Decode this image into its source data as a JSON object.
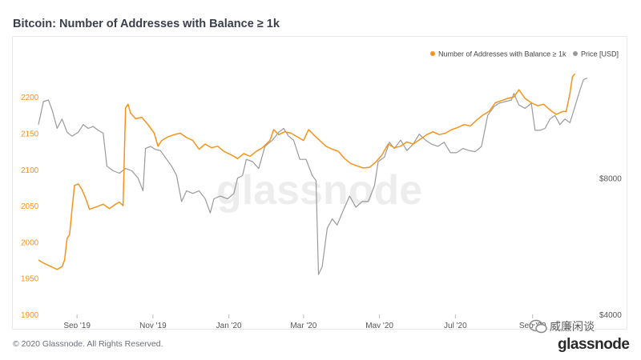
{
  "title": "Bitcoin: Number of Addresses with Balance ≥ 1k",
  "footer": "© 2020 Glassnode. All Rights Reserved.",
  "watermark": "glassnode",
  "brand": "glassnode",
  "wechat_label": "威廉闲谈",
  "colors": {
    "addresses": "#f7931a",
    "price": "#9a9a9a",
    "left_axis": "#f7931a",
    "right_axis": "#555555"
  },
  "chart_data": {
    "type": "line",
    "title": "Bitcoin: Number of Addresses with Balance ≥ 1k",
    "legend": {
      "position": "top-right",
      "entries": [
        "Number of Addresses with Balance ≥ 1k",
        "Price [USD]"
      ]
    },
    "x_ticks": [
      "Sep '19",
      "Nov '19",
      "Jan '20",
      "Mar '20",
      "May '20",
      "Jul '20",
      "Sep '20"
    ],
    "x_tick_dates": [
      "2019-09-01",
      "2019-11-01",
      "2020-01-01",
      "2020-03-01",
      "2020-05-01",
      "2020-07-01",
      "2020-09-01"
    ],
    "xlim": [
      "2019-08-01",
      "2020-10-15"
    ],
    "y_left": {
      "ticks": [
        1900,
        1950,
        2000,
        2050,
        2100,
        2150,
        2200
      ],
      "ylim": [
        1900,
        2240
      ]
    },
    "y_right": {
      "scale": "log",
      "ticks": [
        4000,
        8000
      ],
      "tick_labels": [
        "$4000",
        "$8000"
      ],
      "ylim": [
        4000,
        14000
      ]
    },
    "grid": false,
    "series": [
      {
        "name": "Number of Addresses with Balance ≥ 1k",
        "axis": "left",
        "points": [
          [
            "2019-08-01",
            1975
          ],
          [
            "2019-08-06",
            1970
          ],
          [
            "2019-08-11",
            1966
          ],
          [
            "2019-08-16",
            1962
          ],
          [
            "2019-08-20",
            1966
          ],
          [
            "2019-08-22",
            1975
          ],
          [
            "2019-08-24",
            2005
          ],
          [
            "2019-08-26",
            2010
          ],
          [
            "2019-08-28",
            2045
          ],
          [
            "2019-08-30",
            2078
          ],
          [
            "2019-09-02",
            2080
          ],
          [
            "2019-09-05",
            2072
          ],
          [
            "2019-09-08",
            2060
          ],
          [
            "2019-09-11",
            2045
          ],
          [
            "2019-09-16",
            2048
          ],
          [
            "2019-09-22",
            2052
          ],
          [
            "2019-09-27",
            2046
          ],
          [
            "2019-10-02",
            2052
          ],
          [
            "2019-10-05",
            2055
          ],
          [
            "2019-10-08",
            2050
          ],
          [
            "2019-10-10",
            2185
          ],
          [
            "2019-10-12",
            2190
          ],
          [
            "2019-10-14",
            2178
          ],
          [
            "2019-10-18",
            2170
          ],
          [
            "2019-10-23",
            2172
          ],
          [
            "2019-10-28",
            2162
          ],
          [
            "2019-11-02",
            2150
          ],
          [
            "2019-11-05",
            2132
          ],
          [
            "2019-11-08",
            2140
          ],
          [
            "2019-11-13",
            2145
          ],
          [
            "2019-11-18",
            2148
          ],
          [
            "2019-11-23",
            2150
          ],
          [
            "2019-11-28",
            2144
          ],
          [
            "2019-12-03",
            2140
          ],
          [
            "2019-12-08",
            2128
          ],
          [
            "2019-12-13",
            2135
          ],
          [
            "2019-12-18",
            2130
          ],
          [
            "2019-12-23",
            2132
          ],
          [
            "2019-12-28",
            2125
          ],
          [
            "2020-01-03",
            2120
          ],
          [
            "2020-01-08",
            2115
          ],
          [
            "2020-01-13",
            2122
          ],
          [
            "2020-01-18",
            2118
          ],
          [
            "2020-01-23",
            2125
          ],
          [
            "2020-01-28",
            2130
          ],
          [
            "2020-02-03",
            2140
          ],
          [
            "2020-02-06",
            2155
          ],
          [
            "2020-02-10",
            2148
          ],
          [
            "2020-02-15",
            2152
          ],
          [
            "2020-02-20",
            2150
          ],
          [
            "2020-02-25",
            2145
          ],
          [
            "2020-03-01",
            2140
          ],
          [
            "2020-03-05",
            2155
          ],
          [
            "2020-03-09",
            2148
          ],
          [
            "2020-03-14",
            2140
          ],
          [
            "2020-03-19",
            2132
          ],
          [
            "2020-03-24",
            2128
          ],
          [
            "2020-03-29",
            2125
          ],
          [
            "2020-04-03",
            2115
          ],
          [
            "2020-04-08",
            2108
          ],
          [
            "2020-04-13",
            2105
          ],
          [
            "2020-04-18",
            2102
          ],
          [
            "2020-04-23",
            2103
          ],
          [
            "2020-04-28",
            2110
          ],
          [
            "2020-05-03",
            2120
          ],
          [
            "2020-05-08",
            2135
          ],
          [
            "2020-05-13",
            2130
          ],
          [
            "2020-05-18",
            2132
          ],
          [
            "2020-05-23",
            2138
          ],
          [
            "2020-05-28",
            2135
          ],
          [
            "2020-06-03",
            2142
          ],
          [
            "2020-06-08",
            2148
          ],
          [
            "2020-06-13",
            2152
          ],
          [
            "2020-06-18",
            2148
          ],
          [
            "2020-06-23",
            2150
          ],
          [
            "2020-06-28",
            2155
          ],
          [
            "2020-07-03",
            2158
          ],
          [
            "2020-07-08",
            2162
          ],
          [
            "2020-07-13",
            2160
          ],
          [
            "2020-07-18",
            2168
          ],
          [
            "2020-07-23",
            2175
          ],
          [
            "2020-07-28",
            2180
          ],
          [
            "2020-08-02",
            2192
          ],
          [
            "2020-08-07",
            2195
          ],
          [
            "2020-08-12",
            2198
          ],
          [
            "2020-08-17",
            2200
          ],
          [
            "2020-08-21",
            2210
          ],
          [
            "2020-08-26",
            2198
          ],
          [
            "2020-08-31",
            2192
          ],
          [
            "2020-09-05",
            2188
          ],
          [
            "2020-09-10",
            2190
          ],
          [
            "2020-09-15",
            2182
          ],
          [
            "2020-09-20",
            2176
          ],
          [
            "2020-09-25",
            2180
          ],
          [
            "2020-09-28",
            2180
          ],
          [
            "2020-10-01",
            2205
          ],
          [
            "2020-10-03",
            2228
          ],
          [
            "2020-10-05",
            2232
          ]
        ]
      },
      {
        "name": "Price [USD]",
        "axis": "right",
        "points": [
          [
            "2019-08-01",
            10500
          ],
          [
            "2019-08-05",
            11800
          ],
          [
            "2019-08-09",
            11900
          ],
          [
            "2019-08-12",
            11300
          ],
          [
            "2019-08-16",
            10300
          ],
          [
            "2019-08-20",
            10800
          ],
          [
            "2019-08-24",
            10100
          ],
          [
            "2019-08-28",
            9900
          ],
          [
            "2019-09-02",
            10100
          ],
          [
            "2019-09-06",
            10500
          ],
          [
            "2019-09-10",
            10300
          ],
          [
            "2019-09-14",
            10400
          ],
          [
            "2019-09-18",
            10200
          ],
          [
            "2019-09-22",
            10050
          ],
          [
            "2019-09-25",
            8500
          ],
          [
            "2019-09-30",
            8300
          ],
          [
            "2019-10-05",
            8200
          ],
          [
            "2019-10-10",
            8400
          ],
          [
            "2019-10-15",
            8300
          ],
          [
            "2019-10-20",
            8000
          ],
          [
            "2019-10-24",
            7500
          ],
          [
            "2019-10-26",
            9300
          ],
          [
            "2019-10-30",
            9400
          ],
          [
            "2019-11-03",
            9250
          ],
          [
            "2019-11-07",
            9200
          ],
          [
            "2019-11-12",
            8800
          ],
          [
            "2019-11-16",
            8500
          ],
          [
            "2019-11-20",
            8100
          ],
          [
            "2019-11-24",
            7100
          ],
          [
            "2019-11-28",
            7500
          ],
          [
            "2019-12-03",
            7400
          ],
          [
            "2019-12-08",
            7500
          ],
          [
            "2019-12-13",
            7200
          ],
          [
            "2019-12-17",
            6700
          ],
          [
            "2019-12-20",
            7200
          ],
          [
            "2019-12-25",
            7300
          ],
          [
            "2019-12-31",
            7200
          ],
          [
            "2020-01-05",
            7400
          ],
          [
            "2020-01-08",
            8000
          ],
          [
            "2020-01-12",
            8100
          ],
          [
            "2020-01-15",
            8800
          ],
          [
            "2020-01-20",
            8700
          ],
          [
            "2020-01-25",
            8400
          ],
          [
            "2020-01-30",
            9400
          ],
          [
            "2020-02-05",
            9700
          ],
          [
            "2020-02-10",
            10100
          ],
          [
            "2020-02-14",
            10300
          ],
          [
            "2020-02-18",
            9900
          ],
          [
            "2020-02-22",
            9700
          ],
          [
            "2020-02-27",
            8800
          ],
          [
            "2020-03-03",
            8800
          ],
          [
            "2020-03-08",
            8100
          ],
          [
            "2020-03-11",
            7900
          ],
          [
            "2020-03-13",
            4900
          ],
          [
            "2020-03-16",
            5100
          ],
          [
            "2020-03-20",
            6200
          ],
          [
            "2020-03-24",
            6500
          ],
          [
            "2020-03-28",
            6300
          ],
          [
            "2020-04-02",
            6800
          ],
          [
            "2020-04-07",
            7300
          ],
          [
            "2020-04-12",
            6900
          ],
          [
            "2020-04-17",
            7100
          ],
          [
            "2020-04-22",
            7100
          ],
          [
            "2020-04-27",
            7700
          ],
          [
            "2020-04-30",
            8700
          ],
          [
            "2020-05-05",
            8900
          ],
          [
            "2020-05-09",
            9600
          ],
          [
            "2020-05-13",
            9300
          ],
          [
            "2020-05-18",
            9700
          ],
          [
            "2020-05-23",
            9200
          ],
          [
            "2020-05-28",
            9500
          ],
          [
            "2020-06-02",
            10000
          ],
          [
            "2020-06-07",
            9700
          ],
          [
            "2020-06-12",
            9500
          ],
          [
            "2020-06-17",
            9400
          ],
          [
            "2020-06-22",
            9600
          ],
          [
            "2020-06-27",
            9100
          ],
          [
            "2020-07-02",
            9100
          ],
          [
            "2020-07-07",
            9300
          ],
          [
            "2020-07-12",
            9200
          ],
          [
            "2020-07-17",
            9150
          ],
          [
            "2020-07-22",
            9400
          ],
          [
            "2020-07-27",
            11000
          ],
          [
            "2020-08-01",
            11500
          ],
          [
            "2020-08-05",
            11700
          ],
          [
            "2020-08-10",
            11800
          ],
          [
            "2020-08-15",
            11900
          ],
          [
            "2020-08-17",
            12300
          ],
          [
            "2020-08-21",
            11600
          ],
          [
            "2020-08-26",
            11400
          ],
          [
            "2020-08-31",
            11700
          ],
          [
            "2020-09-03",
            10200
          ],
          [
            "2020-09-07",
            10200
          ],
          [
            "2020-09-11",
            10300
          ],
          [
            "2020-09-15",
            10800
          ],
          [
            "2020-09-19",
            11000
          ],
          [
            "2020-09-23",
            10500
          ],
          [
            "2020-09-27",
            10800
          ],
          [
            "2020-10-01",
            10600
          ],
          [
            "2020-10-05",
            11500
          ],
          [
            "2020-10-09",
            12500
          ],
          [
            "2020-10-12",
            13200
          ],
          [
            "2020-10-15",
            13300
          ]
        ]
      }
    ]
  }
}
